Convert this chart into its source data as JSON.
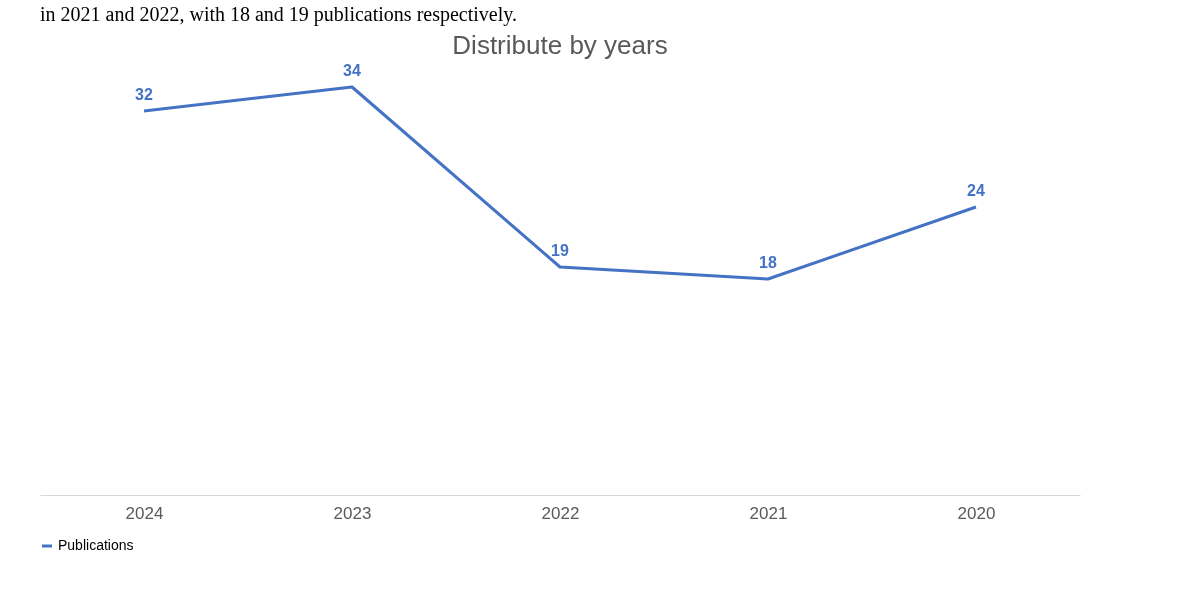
{
  "chart_data": {
    "type": "line",
    "title": "Distribute by years",
    "categories": [
      "2024",
      "2023",
      "2022",
      "2021",
      "2020"
    ],
    "series": [
      {
        "name": "Publications",
        "color": "#4472c4",
        "values": [
          32,
          34,
          19,
          18,
          24
        ]
      }
    ],
    "tick_labels": "x",
    "data_labels": true,
    "grid": false,
    "legend": "bottom",
    "marker": "none",
    "line_style": "solid",
    "annotations": [
      "in 2021 and 2022, with 18 and 19 publications respectively."
    ]
  }
}
